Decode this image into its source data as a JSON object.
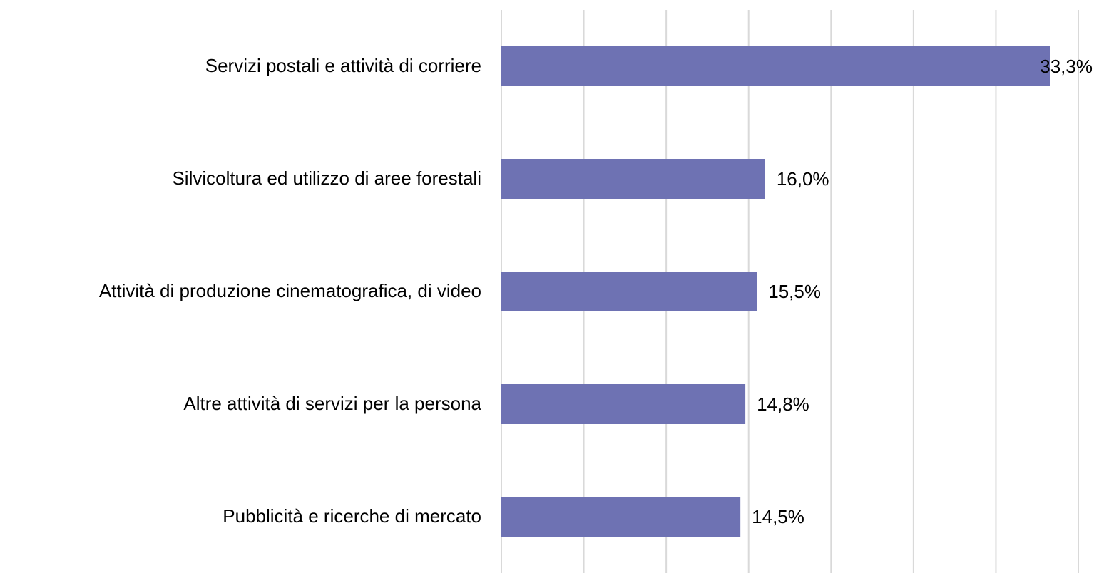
{
  "chart_data": {
    "type": "hbar",
    "categories": [
      "Servizi postali e attività di corriere",
      "Silvicoltura ed utilizzo di aree forestali",
      "Attività di produzione cinematografica, di video",
      "Altre attività di servizi per la persona",
      "Pubblicità e ricerche di mercato"
    ],
    "values": [
      33.3,
      16.0,
      15.5,
      14.8,
      14.5
    ],
    "value_labels": [
      "33,3%",
      "16,0%",
      "15,5%",
      "14,8%",
      "14,5%"
    ],
    "color": "#6e72b3",
    "xlim": [
      0,
      35
    ],
    "xticks": [
      0,
      5,
      10,
      15,
      20,
      25,
      30,
      35
    ],
    "grid": true
  }
}
